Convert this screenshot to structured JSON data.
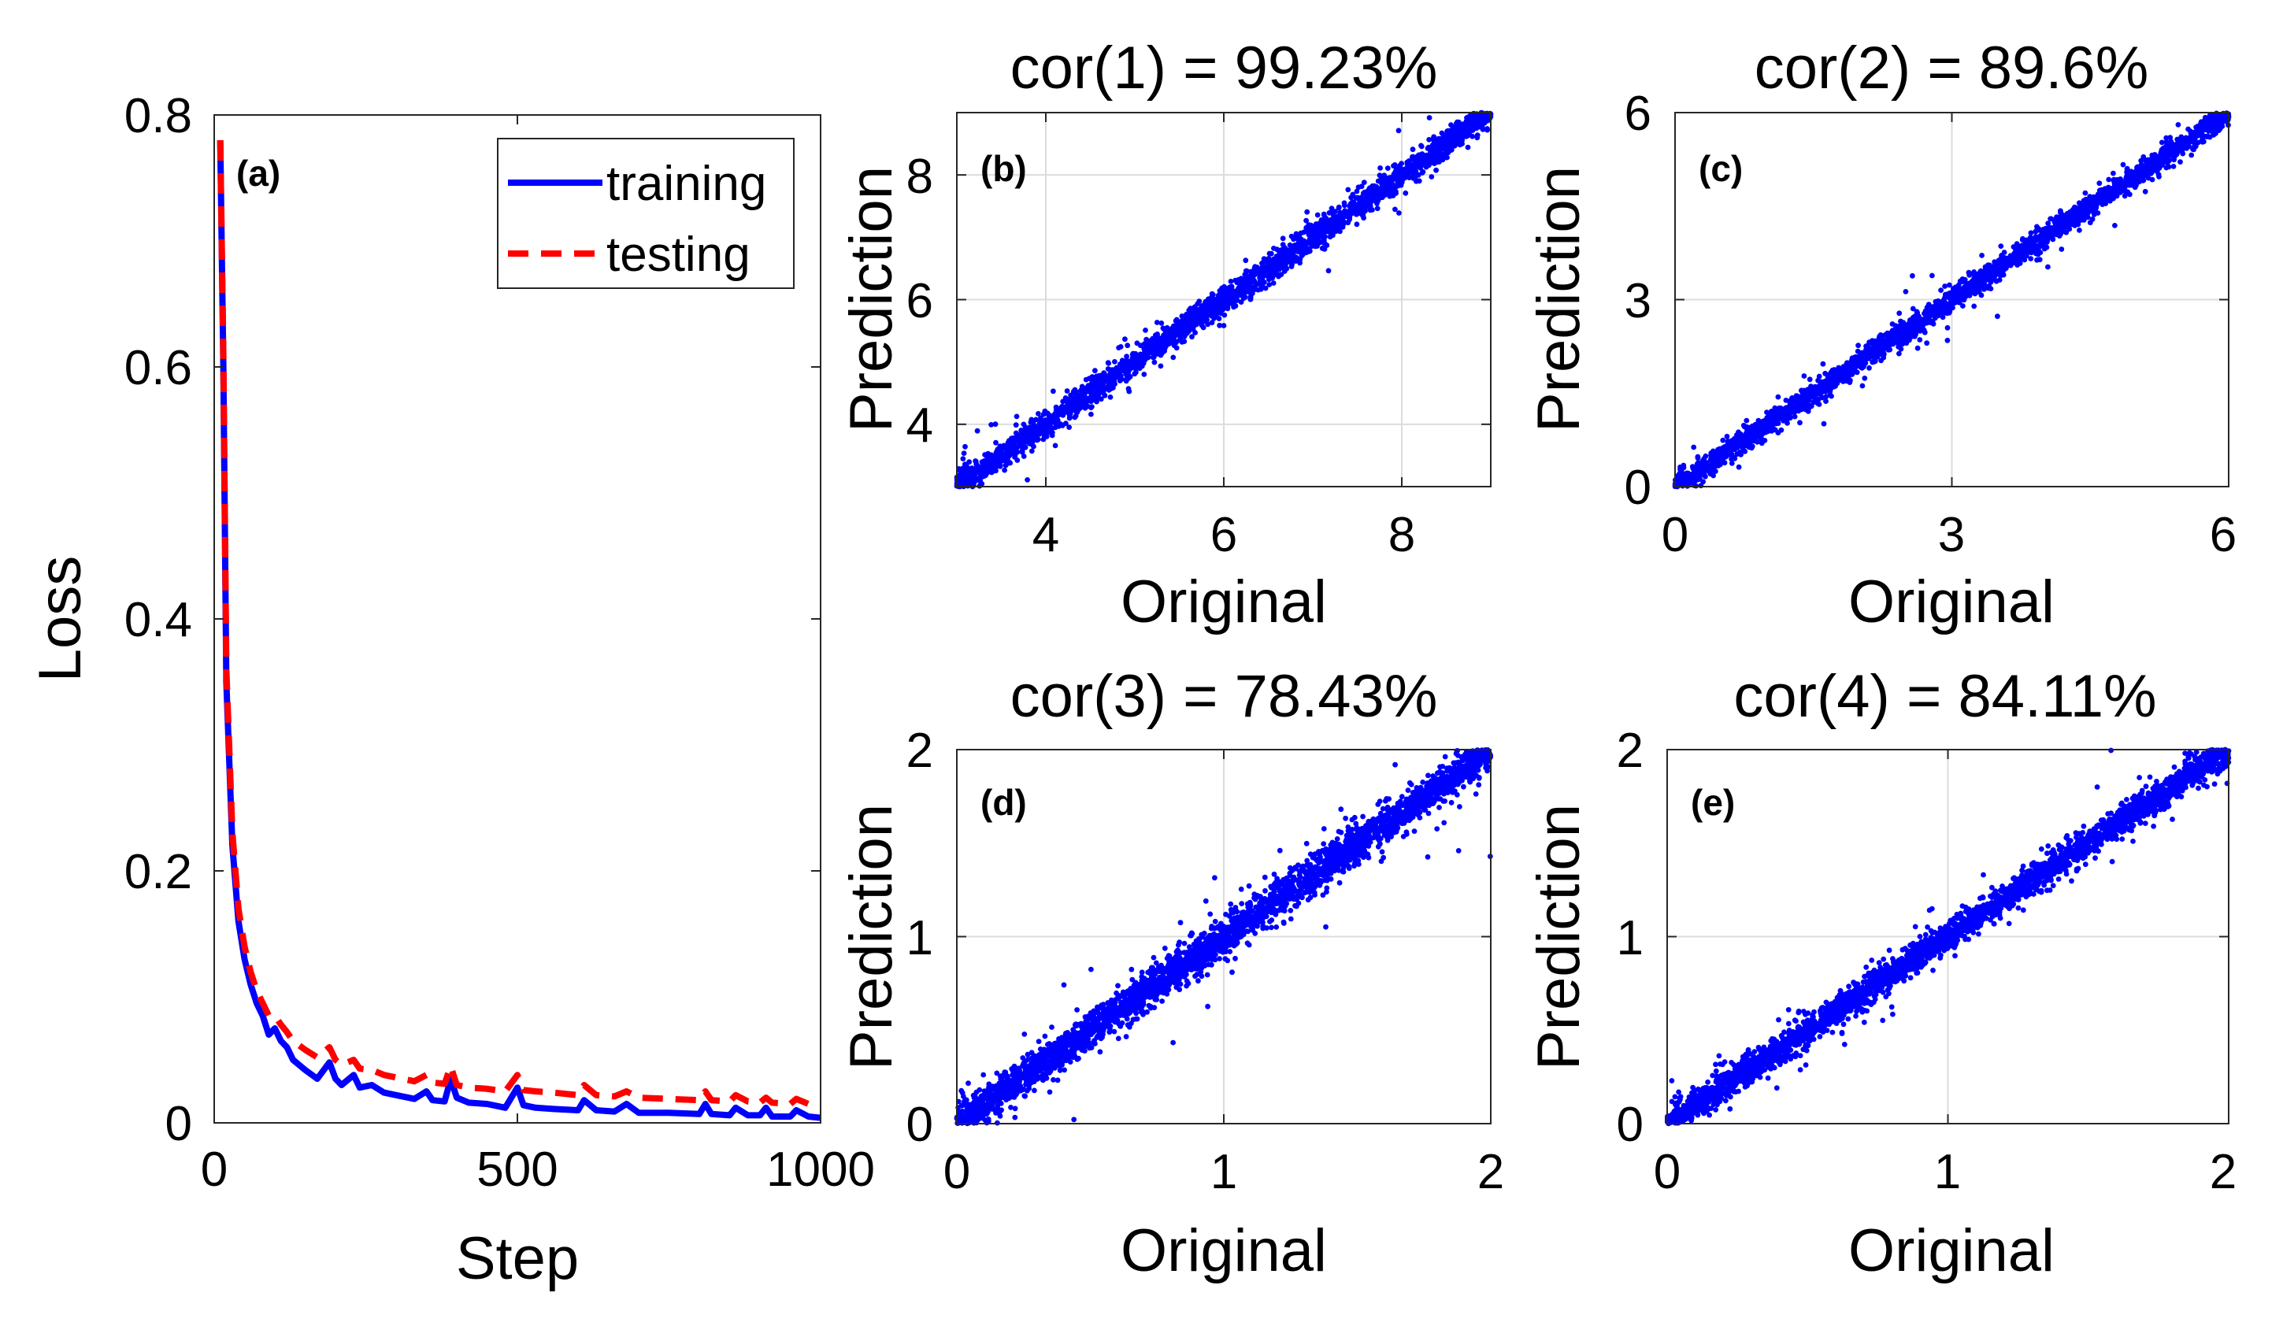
{
  "figure": {
    "background": "#ffffff",
    "grid_color": "#dcdcdc",
    "axis_color": "#262626"
  },
  "chart_data": [
    {
      "id": "a",
      "type": "line",
      "panel_label": "(a)",
      "title": "",
      "xlabel": "Step",
      "ylabel": "Loss",
      "xlim": [
        0,
        1000
      ],
      "ylim": [
        0,
        0.8
      ],
      "xticks": [
        0,
        500,
        1000
      ],
      "yticks": [
        0,
        0.2,
        0.4,
        0.6,
        0.8
      ],
      "xtick_labels": [
        "0",
        "500",
        "1000"
      ],
      "ytick_labels": [
        "0",
        "0.2",
        "0.4",
        "0.6",
        "0.8"
      ],
      "grid": false,
      "legend": "top-right",
      "series": [
        {
          "name": "training",
          "color": "#0000ff",
          "style": "solid",
          "x": [
            10,
            15,
            20,
            30,
            40,
            50,
            60,
            70,
            80,
            90,
            100,
            110,
            120,
            130,
            150,
            170,
            190,
            200,
            210,
            230,
            240,
            260,
            280,
            300,
            330,
            350,
            360,
            380,
            390,
            400,
            420,
            450,
            480,
            500,
            510,
            530,
            560,
            600,
            610,
            630,
            660,
            680,
            700,
            750,
            800,
            810,
            820,
            850,
            860,
            880,
            900,
            910,
            920,
            950,
            960,
            980,
            1000
          ],
          "y": [
            0.78,
            0.6,
            0.35,
            0.22,
            0.16,
            0.13,
            0.11,
            0.095,
            0.085,
            0.07,
            0.075,
            0.065,
            0.06,
            0.05,
            0.042,
            0.035,
            0.048,
            0.035,
            0.03,
            0.038,
            0.028,
            0.03,
            0.024,
            0.022,
            0.019,
            0.025,
            0.018,
            0.017,
            0.035,
            0.02,
            0.016,
            0.015,
            0.012,
            0.028,
            0.014,
            0.012,
            0.011,
            0.01,
            0.018,
            0.01,
            0.009,
            0.015,
            0.008,
            0.008,
            0.007,
            0.015,
            0.007,
            0.006,
            0.012,
            0.006,
            0.006,
            0.012,
            0.005,
            0.005,
            0.01,
            0.005,
            0.004
          ]
        },
        {
          "name": "testing",
          "color": "#ff0000",
          "style": "dashed",
          "x": [
            10,
            15,
            20,
            30,
            40,
            50,
            60,
            70,
            80,
            90,
            100,
            110,
            120,
            130,
            150,
            170,
            190,
            200,
            210,
            230,
            240,
            260,
            280,
            300,
            330,
            350,
            360,
            380,
            390,
            400,
            420,
            450,
            480,
            500,
            510,
            530,
            560,
            600,
            610,
            630,
            660,
            680,
            700,
            750,
            800,
            810,
            820,
            850,
            860,
            880,
            900,
            910,
            920,
            950,
            960,
            980,
            1000
          ],
          "y": [
            0.78,
            0.61,
            0.36,
            0.23,
            0.17,
            0.14,
            0.12,
            0.105,
            0.095,
            0.085,
            0.085,
            0.078,
            0.072,
            0.065,
            0.058,
            0.052,
            0.06,
            0.05,
            0.046,
            0.05,
            0.043,
            0.042,
            0.038,
            0.036,
            0.033,
            0.038,
            0.032,
            0.031,
            0.045,
            0.03,
            0.028,
            0.027,
            0.025,
            0.038,
            0.026,
            0.025,
            0.024,
            0.022,
            0.03,
            0.022,
            0.021,
            0.025,
            0.02,
            0.019,
            0.018,
            0.025,
            0.018,
            0.017,
            0.022,
            0.017,
            0.016,
            0.02,
            0.016,
            0.015,
            0.019,
            0.015,
            0.014
          ]
        }
      ]
    },
    {
      "id": "b",
      "type": "scatter",
      "panel_label": "(b)",
      "title": "cor(1) = 99.23%",
      "xlabel": "Original",
      "ylabel": "Prediction",
      "xlim": [
        3,
        9
      ],
      "ylim": [
        3,
        9
      ],
      "xticks": [
        4,
        6,
        8
      ],
      "yticks": [
        4,
        6,
        8
      ],
      "xtick_labels": [
        "4",
        "6",
        "8"
      ],
      "ytick_labels": [
        "4",
        "6",
        "8"
      ],
      "grid": true,
      "color": "#0000ff",
      "trend": "y ≈ x",
      "spread": 0.12,
      "n_points": 2600,
      "seed": 11
    },
    {
      "id": "c",
      "type": "scatter",
      "panel_label": "(c)",
      "title": "cor(2) = 89.6%",
      "xlabel": "Original",
      "ylabel": "Prediction",
      "xlim": [
        0,
        6
      ],
      "ylim": [
        0,
        6
      ],
      "xticks": [
        0,
        3,
        6
      ],
      "yticks": [
        0,
        3,
        6
      ],
      "xtick_labels": [
        "0",
        "3",
        "6"
      ],
      "ytick_labels": [
        "0",
        "3",
        "6"
      ],
      "grid": true,
      "color": "#0000ff",
      "trend": "y ≈ x",
      "spread": 0.1,
      "n_points": 2600,
      "seed": 23
    },
    {
      "id": "d",
      "type": "scatter",
      "panel_label": "(d)",
      "title": "cor(3) = 78.43%",
      "xlabel": "Original",
      "ylabel": "Prediction",
      "xlim": [
        0,
        2
      ],
      "ylim": [
        0,
        2
      ],
      "xticks": [
        0,
        1,
        2
      ],
      "yticks": [
        0,
        1,
        2
      ],
      "xtick_labels": [
        "0",
        "1",
        "2"
      ],
      "ytick_labels": [
        "0",
        "1",
        "2"
      ],
      "grid": true,
      "color": "#0000ff",
      "trend": "y ≈ x",
      "spread": 0.055,
      "n_points": 3200,
      "seed": 37
    },
    {
      "id": "e",
      "type": "scatter",
      "panel_label": "(e)",
      "title": "cor(4) = 84.11%",
      "xlabel": "Original",
      "ylabel": "Prediction",
      "xlim": [
        0,
        2
      ],
      "ylim": [
        0,
        2
      ],
      "xticks": [
        0,
        1,
        2
      ],
      "yticks": [
        0,
        1,
        2
      ],
      "xtick_labels": [
        "0",
        "1",
        "2"
      ],
      "ytick_labels": [
        "0",
        "1",
        "2"
      ],
      "grid": true,
      "color": "#0000ff",
      "trend": "y ≈ x",
      "spread": 0.045,
      "n_points": 3200,
      "seed": 53
    }
  ]
}
